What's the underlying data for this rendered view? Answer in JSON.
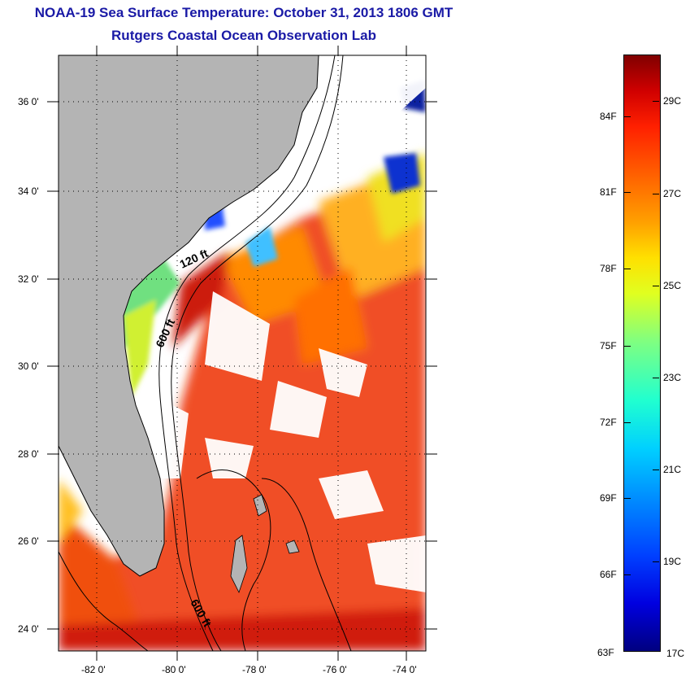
{
  "title": {
    "line1": "NOAA-19 Sea Surface Temperature:  October 31, 2013 1806 GMT",
    "line2": "Rutgers Coastal Ocean Observation Lab"
  },
  "map": {
    "lat_labels": [
      "36 0'",
      "34 0'",
      "32 0'",
      "30 0'",
      "28 0'",
      "26 0'",
      "24 0'"
    ],
    "lon_labels": [
      "-82 0'",
      "-80 0'",
      "-78 0'",
      "-76 0'",
      "-74 0'"
    ],
    "contour_labels": [
      "120 ft",
      "600 ft",
      "600 ft"
    ],
    "colors": {
      "land": "#b4b4b4",
      "cloud": "#ffffff",
      "warm": "#e8200c",
      "hot": "#cc1010"
    }
  },
  "colorbar": {
    "fahrenheit_labels": [
      "84F",
      "81F",
      "78F",
      "75F",
      "72F",
      "69F",
      "66F",
      "63F"
    ],
    "celsius_labels": [
      "29C",
      "27C",
      "25C",
      "23C",
      "21C",
      "19C",
      "17C"
    ]
  }
}
